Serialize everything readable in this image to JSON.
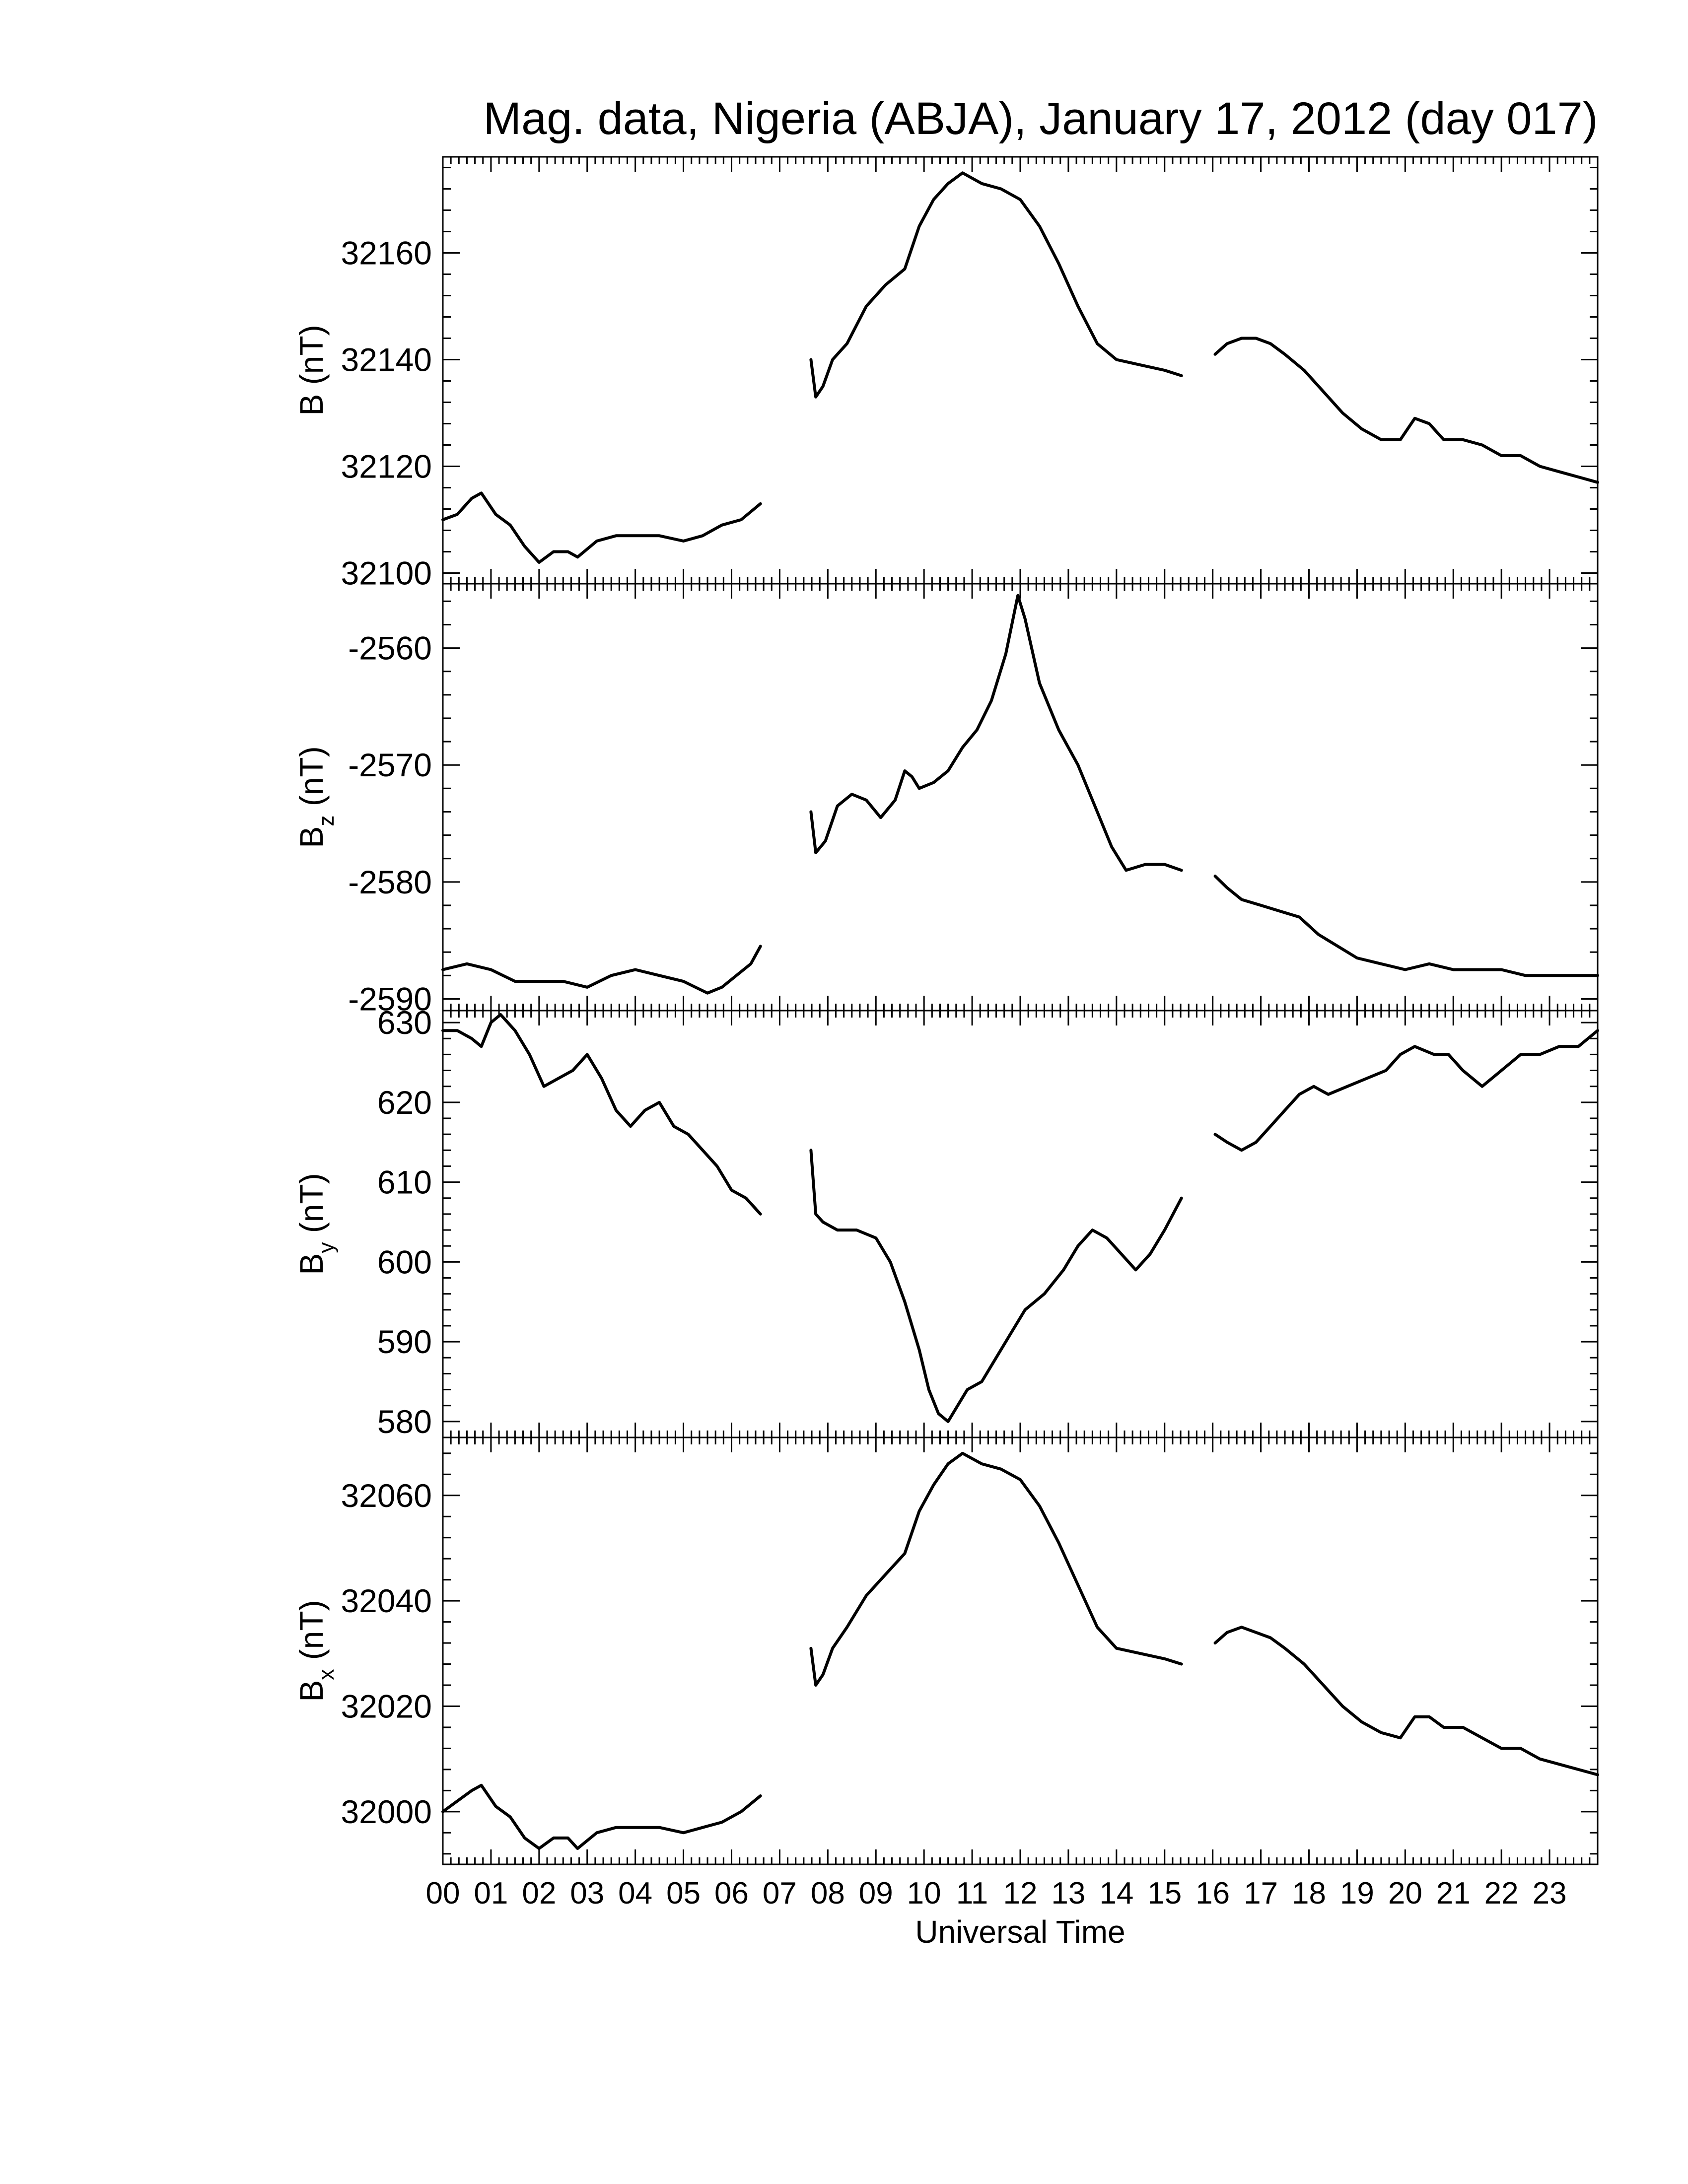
{
  "title": "Mag. data, Nigeria (ABJA), January 17, 2012 (day 017)",
  "xlabel": "Universal Time",
  "x_tick_labels": [
    "00",
    "01",
    "02",
    "03",
    "04",
    "05",
    "06",
    "07",
    "08",
    "09",
    "10",
    "11",
    "12",
    "13",
    "14",
    "15",
    "16",
    "17",
    "18",
    "19",
    "20",
    "21",
    "22",
    "23"
  ],
  "chart_data": [
    {
      "type": "line",
      "ylabel_main": "B",
      "ylabel_sub": "",
      "ylabel_unit": " (nT)",
      "xlim": [
        0,
        24
      ],
      "ylim": [
        32098,
        32178
      ],
      "yticks": [
        32100,
        32120,
        32140,
        32160
      ],
      "ytick_labels": [
        "32100",
        "32120",
        "32140",
        "32160"
      ],
      "series": [
        {
          "x": [
            0,
            0.3,
            0.6,
            0.8,
            1.1,
            1.4,
            1.7,
            2.0,
            2.3,
            2.6,
            2.8,
            3.2,
            3.6,
            4.0,
            4.5,
            5.0,
            5.4,
            5.8,
            6.2,
            6.6
          ],
          "y": [
            32110,
            32111,
            32114,
            32115,
            32111,
            32109,
            32105,
            32102,
            32104,
            32104,
            32103,
            32106,
            32107,
            32107,
            32107,
            32106,
            32107,
            32109,
            32110,
            32113
          ]
        },
        {
          "x": [
            7.65,
            7.75,
            7.9,
            8.1,
            8.4,
            8.8,
            9.2,
            9.6,
            9.9,
            10.2,
            10.5,
            10.8,
            11.2,
            11.6,
            12.0,
            12.4,
            12.8,
            13.2,
            13.6,
            14.0,
            14.5,
            15.0,
            15.35
          ],
          "y": [
            32140,
            32133,
            32135,
            32140,
            32143,
            32150,
            32154,
            32157,
            32165,
            32170,
            32173,
            32175,
            32173,
            32172,
            32170,
            32165,
            32158,
            32150,
            32143,
            32140,
            32139,
            32138,
            32137
          ]
        },
        {
          "x": [
            16.05,
            16.3,
            16.6,
            16.9,
            17.2,
            17.5,
            17.9,
            18.3,
            18.7,
            19.1,
            19.5,
            19.9,
            20.2,
            20.5,
            20.8,
            21.2,
            21.6,
            22.0,
            22.4,
            22.8,
            23.2,
            23.6,
            24.0
          ],
          "y": [
            32141,
            32143,
            32144,
            32144,
            32143,
            32141,
            32138,
            32134,
            32130,
            32127,
            32125,
            32125,
            32129,
            32128,
            32125,
            32125,
            32124,
            32122,
            32122,
            32120,
            32119,
            32118,
            32117
          ]
        }
      ]
    },
    {
      "type": "line",
      "ylabel_main": "B",
      "ylabel_sub": "z",
      "ylabel_unit": " (nT)",
      "xlim": [
        0,
        24
      ],
      "ylim": [
        -2591,
        -2554.5
      ],
      "yticks": [
        -2590,
        -2580,
        -2570,
        -2560
      ],
      "ytick_labels": [
        "-2590",
        "-2580",
        "-2570",
        "-2560"
      ],
      "series": [
        {
          "x": [
            0,
            0.5,
            1.0,
            1.5,
            2.0,
            2.5,
            3.0,
            3.5,
            4.0,
            4.5,
            5.0,
            5.5,
            5.8,
            6.1,
            6.4,
            6.6
          ],
          "y": [
            -2587.5,
            -2587,
            -2587.5,
            -2588.5,
            -2588.5,
            -2588.5,
            -2589,
            -2588,
            -2587.5,
            -2588,
            -2588.5,
            -2589.5,
            -2589,
            -2588,
            -2587,
            -2585.5
          ]
        },
        {
          "x": [
            7.65,
            7.75,
            7.95,
            8.2,
            8.5,
            8.8,
            9.1,
            9.4,
            9.6,
            9.75,
            9.9,
            10.2,
            10.5,
            10.8,
            11.1,
            11.4,
            11.7,
            11.95,
            12.1,
            12.4,
            12.8,
            13.2,
            13.6,
            13.9,
            14.2,
            14.6,
            15.0,
            15.35
          ],
          "y": [
            -2574,
            -2577.5,
            -2576.5,
            -2573.5,
            -2572.5,
            -2573,
            -2574.5,
            -2573,
            -2570.5,
            -2571,
            -2572,
            -2571.5,
            -2570.5,
            -2568.5,
            -2567,
            -2564.5,
            -2560.5,
            -2555.5,
            -2557.5,
            -2563,
            -2567,
            -2570,
            -2574,
            -2577,
            -2579,
            -2578.5,
            -2578.5,
            -2579
          ]
        },
        {
          "x": [
            16.05,
            16.3,
            16.6,
            17.0,
            17.4,
            17.8,
            18.2,
            18.6,
            19.0,
            19.5,
            20.0,
            20.5,
            21.0,
            21.5,
            22.0,
            22.5,
            23.0,
            23.5,
            24.0
          ],
          "y": [
            -2579.5,
            -2580.5,
            -2581.5,
            -2582,
            -2582.5,
            -2583,
            -2584.5,
            -2585.5,
            -2586.5,
            -2587,
            -2587.5,
            -2587,
            -2587.5,
            -2587.5,
            -2587.5,
            -2588,
            -2588,
            -2588,
            -2588
          ]
        }
      ]
    },
    {
      "type": "line",
      "ylabel_main": "B",
      "ylabel_sub": "y",
      "ylabel_unit": " (nT)",
      "xlim": [
        0,
        24
      ],
      "ylim": [
        578,
        631.5
      ],
      "yticks": [
        580,
        590,
        600,
        610,
        620,
        630
      ],
      "ytick_labels": [
        "580",
        "590",
        "600",
        "610",
        "620",
        "630"
      ],
      "series": [
        {
          "x": [
            0,
            0.3,
            0.6,
            0.8,
            1.0,
            1.2,
            1.5,
            1.8,
            2.1,
            2.4,
            2.7,
            3.0,
            3.3,
            3.6,
            3.9,
            4.2,
            4.5,
            4.8,
            5.1,
            5.4,
            5.7,
            6.0,
            6.3,
            6.6
          ],
          "y": [
            629,
            629,
            628,
            627,
            630,
            631,
            629,
            626,
            622,
            623,
            624,
            626,
            623,
            619,
            617,
            619,
            620,
            617,
            616,
            614,
            612,
            609,
            608,
            606
          ]
        },
        {
          "x": [
            7.65,
            7.75,
            7.9,
            8.2,
            8.6,
            9.0,
            9.3,
            9.6,
            9.9,
            10.1,
            10.3,
            10.5,
            10.7,
            10.9,
            11.2,
            11.5,
            11.8,
            12.1,
            12.5,
            12.9,
            13.2,
            13.5,
            13.8,
            14.1,
            14.4,
            14.7,
            15.0,
            15.35
          ],
          "y": [
            614,
            606,
            605,
            604,
            604,
            603,
            600,
            595,
            589,
            584,
            581,
            580,
            582,
            584,
            585,
            588,
            591,
            594,
            596,
            599,
            602,
            604,
            603,
            601,
            599,
            601,
            604,
            608
          ]
        },
        {
          "x": [
            16.05,
            16.3,
            16.6,
            16.9,
            17.2,
            17.5,
            17.8,
            18.1,
            18.4,
            18.8,
            19.2,
            19.6,
            19.9,
            20.2,
            20.6,
            20.9,
            21.2,
            21.6,
            22.0,
            22.4,
            22.8,
            23.2,
            23.6,
            24.0
          ],
          "y": [
            616,
            615,
            614,
            615,
            617,
            619,
            621,
            622,
            621,
            622,
            623,
            624,
            626,
            627,
            626,
            626,
            624,
            622,
            624,
            626,
            626,
            627,
            627,
            629
          ]
        }
      ]
    },
    {
      "type": "line",
      "ylabel_main": "B",
      "ylabel_sub": "x",
      "ylabel_unit": " (nT)",
      "xlim": [
        0,
        24
      ],
      "ylim": [
        31990,
        32071
      ],
      "yticks": [
        32000,
        32020,
        32040,
        32060
      ],
      "ytick_labels": [
        "32000",
        "32020",
        "32040",
        "32060"
      ],
      "series": [
        {
          "x": [
            0,
            0.3,
            0.6,
            0.8,
            1.1,
            1.4,
            1.7,
            2.0,
            2.3,
            2.6,
            2.8,
            3.2,
            3.6,
            4.0,
            4.5,
            5.0,
            5.4,
            5.8,
            6.2,
            6.6
          ],
          "y": [
            32000,
            32002,
            32004,
            32005,
            32001,
            31999,
            31995,
            31993,
            31995,
            31995,
            31993,
            31996,
            31997,
            31997,
            31997,
            31996,
            31997,
            31998,
            32000,
            32003
          ]
        },
        {
          "x": [
            7.65,
            7.75,
            7.9,
            8.1,
            8.4,
            8.8,
            9.2,
            9.6,
            9.9,
            10.2,
            10.5,
            10.8,
            11.2,
            11.6,
            12.0,
            12.4,
            12.8,
            13.2,
            13.6,
            14.0,
            14.5,
            15.0,
            15.35
          ],
          "y": [
            32031,
            32024,
            32026,
            32031,
            32035,
            32041,
            32045,
            32049,
            32057,
            32062,
            32066,
            32068,
            32066,
            32065,
            32063,
            32058,
            32051,
            32043,
            32035,
            32031,
            32030,
            32029,
            32028
          ]
        },
        {
          "x": [
            16.05,
            16.3,
            16.6,
            16.9,
            17.2,
            17.5,
            17.9,
            18.3,
            18.7,
            19.1,
            19.5,
            19.9,
            20.2,
            20.5,
            20.8,
            21.2,
            21.6,
            22.0,
            22.4,
            22.8,
            23.2,
            23.6,
            24.0
          ],
          "y": [
            32032,
            32034,
            32035,
            32034,
            32033,
            32031,
            32028,
            32024,
            32020,
            32017,
            32015,
            32014,
            32018,
            32018,
            32016,
            32016,
            32014,
            32012,
            32012,
            32010,
            32009,
            32008,
            32007
          ]
        }
      ]
    }
  ]
}
